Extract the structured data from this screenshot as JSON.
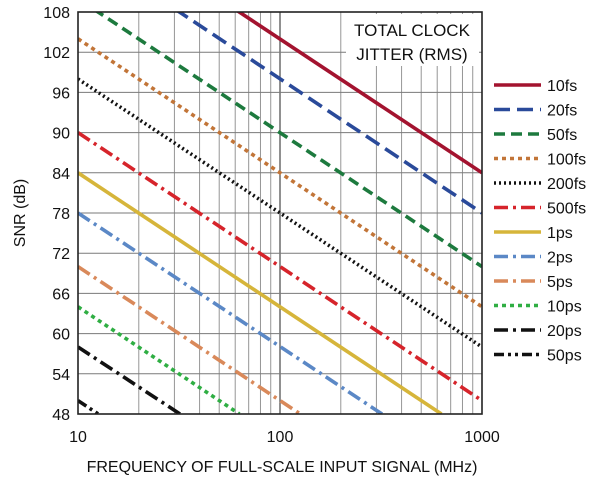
{
  "chart_data": {
    "type": "line",
    "xlabel": "FREQUENCY OF FULL-SCALE INPUT SIGNAL (MHz)",
    "ylabel": "SNR (dB)",
    "x_scale": "log",
    "xlim": [
      10,
      1000
    ],
    "ylim": [
      48,
      108
    ],
    "x_ticks": [
      10,
      100,
      1000
    ],
    "x_tick_labels": [
      "10",
      "100",
      "1000"
    ],
    "y_ticks": [
      48,
      54,
      60,
      66,
      72,
      78,
      84,
      90,
      96,
      102,
      108
    ],
    "y_tick_labels": [
      "48",
      "54",
      "60",
      "66",
      "72",
      "78",
      "84",
      "90",
      "96",
      "102",
      "108"
    ],
    "grid": true,
    "annotation": [
      "TOTAL CLOCK",
      "JITTER (RMS)"
    ],
    "legend_position": "right",
    "series": [
      {
        "name": "10fs",
        "color": "#a3132f",
        "dash": "solid",
        "x": [
          60,
          1000
        ],
        "y": [
          108.4,
          84.0
        ]
      },
      {
        "name": "20fs",
        "color": "#2a4a9a",
        "dash": "longdash",
        "x": [
          30,
          1000
        ],
        "y": [
          108.5,
          78.0
        ]
      },
      {
        "name": "50fs",
        "color": "#1d7a3e",
        "dash": "dash",
        "x": [
          12,
          1000
        ],
        "y": [
          108.4,
          70.0
        ]
      },
      {
        "name": "100fs",
        "color": "#c27538",
        "dash": "dot",
        "x": [
          10,
          1000
        ],
        "y": [
          104.0,
          64.0
        ]
      },
      {
        "name": "200fs",
        "color": "#111111",
        "dash": "finedot",
        "x": [
          10,
          1000
        ],
        "y": [
          98.0,
          58.0
        ]
      },
      {
        "name": "500fs",
        "color": "#d6242b",
        "dash": "dashdot",
        "x": [
          10,
          1000
        ],
        "y": [
          90.0,
          50.0
        ]
      },
      {
        "name": "1ps",
        "color": "#d6b53a",
        "dash": "solid",
        "x": [
          10,
          630
        ],
        "y": [
          84.0,
          48.0
        ]
      },
      {
        "name": "2ps",
        "color": "#5b88c6",
        "dash": "dashdot",
        "x": [
          10,
          320
        ],
        "y": [
          78.0,
          48.0
        ]
      },
      {
        "name": "5ps",
        "color": "#d9895a",
        "dash": "dashdot",
        "x": [
          10,
          126
        ],
        "y": [
          70.0,
          48.0
        ]
      },
      {
        "name": "10ps",
        "color": "#2fae43",
        "dash": "dot",
        "x": [
          10,
          63
        ],
        "y": [
          64.0,
          48.0
        ]
      },
      {
        "name": "20ps",
        "color": "#111111",
        "dash": "dashdot",
        "x": [
          10,
          32
        ],
        "y": [
          58.0,
          48.0
        ]
      },
      {
        "name": "50ps",
        "color": "#111111",
        "dash": "dashdotdot",
        "x": [
          10,
          12.6
        ],
        "y": [
          50.0,
          48.0
        ]
      }
    ]
  }
}
